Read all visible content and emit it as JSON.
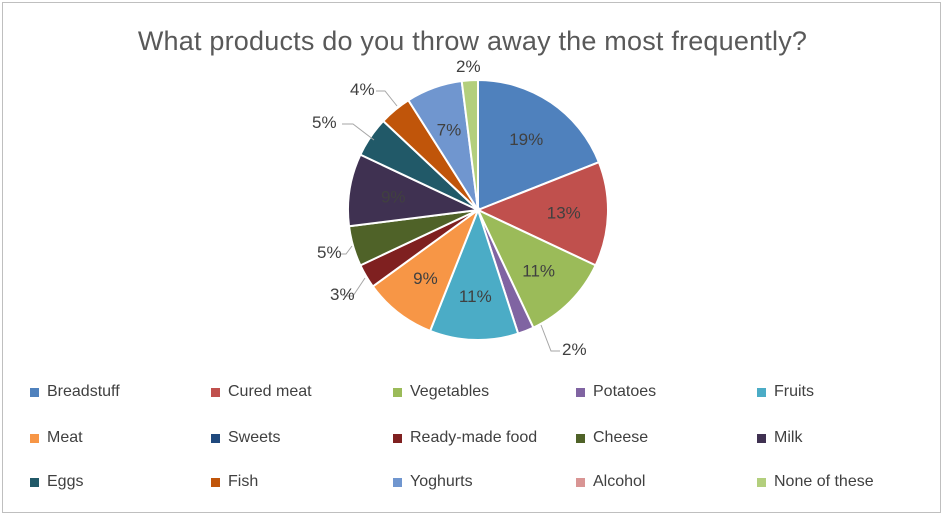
{
  "chart_data": {
    "type": "pie",
    "title": "What products do you throw away the most frequently?",
    "categories": [
      "Breadstuff",
      "Cured meat",
      "Vegetables",
      "Potatoes",
      "Fruits",
      "Meat",
      "Sweets",
      "Ready-made food",
      "Cheese",
      "Milk",
      "Eggs",
      "Fish",
      "Yoghurts",
      "Alcohol",
      "None of these"
    ],
    "values": [
      19,
      13,
      11,
      2,
      11,
      9,
      0,
      3,
      5,
      9,
      5,
      4,
      7,
      0,
      2
    ],
    "labels": [
      "19%",
      "13%",
      "11%",
      "2%",
      "11%",
      "9%",
      "",
      "3%",
      "5%",
      "9%",
      "5%",
      "4%",
      "7%",
      "",
      "2%"
    ],
    "colors": [
      "#4f81bd",
      "#c0504d",
      "#9bbb59",
      "#8064a2",
      "#4bacc6",
      "#f79646",
      "#1f497d",
      "#7f2020",
      "#4f6228",
      "#3f3151",
      "#215968",
      "#c0550a",
      "#7096cf",
      "#d99594",
      "#b3cf7d"
    ],
    "legend_position": "bottom"
  }
}
